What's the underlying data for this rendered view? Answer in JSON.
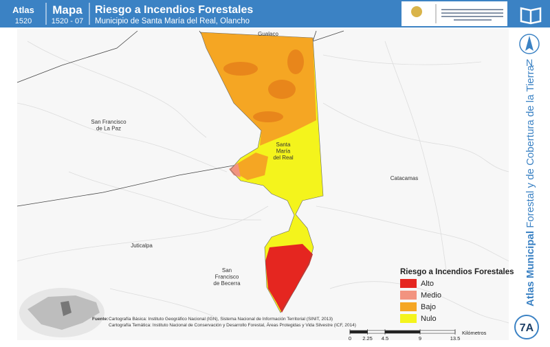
{
  "header": {
    "atlas_label": "Atlas",
    "atlas_number": "1520",
    "map_label": "Mapa",
    "map_number": "1520 - 07",
    "title": "Riesgo a Incendios Forestales",
    "subtitle": "Municipio de Santa María del Real, Olancho"
  },
  "sidebar": {
    "north": "N",
    "series_bold": "Atlas Municipal",
    "series_rest": " Forestal y de Cobertura de la Tierra",
    "sheet": "7A"
  },
  "places": [
    {
      "lines": [
        "Gualaco"
      ]
    },
    {
      "lines": [
        "San Francisco",
        "de La Paz"
      ]
    },
    {
      "lines": [
        "Santa",
        "María",
        "del Real"
      ]
    },
    {
      "lines": [
        "Catacamas"
      ]
    },
    {
      "lines": [
        "Juticalpa"
      ]
    },
    {
      "lines": [
        "San",
        "Francisco",
        "de Becerra"
      ]
    }
  ],
  "legend": {
    "title": "Riesgo a Incendios Forestales",
    "items": [
      {
        "label": "Alto",
        "color": "#e52620"
      },
      {
        "label": "Medio",
        "color": "#f2937f"
      },
      {
        "label": "Bajo",
        "color": "#f5a623"
      },
      {
        "label": "Nulo",
        "color": "#f4f41c"
      }
    ]
  },
  "source": {
    "label": "Fuente:",
    "lines": [
      "Cartografía Básica: Instituto Geográfico Nacional (IGN), Sistema Nacional de Información Territorial (SINIT, 2013)",
      "Cartografía Temática: Instituto Nacional de Conservación y Desarrollo Forestal, Áreas Protegidas y Vida Silvestre (ICF, 2014)"
    ]
  },
  "scale_bar": {
    "ticks": [
      0,
      2.25,
      4.5,
      9,
      13.5
    ],
    "unit": "Kilómetros"
  }
}
